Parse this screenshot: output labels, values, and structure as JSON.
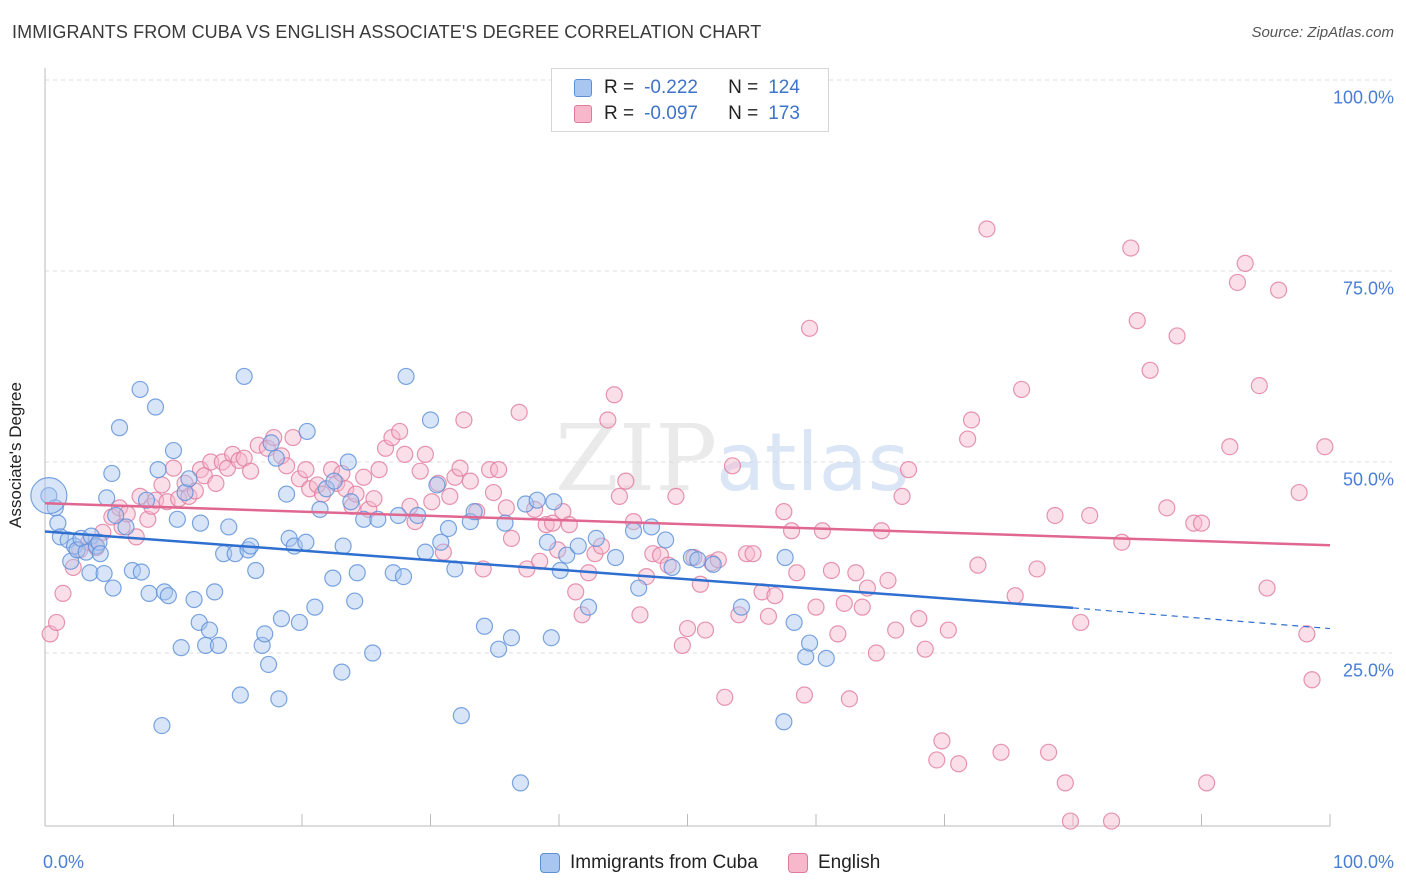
{
  "header": {
    "title": "IMMIGRANTS FROM CUBA VS ENGLISH ASSOCIATE'S DEGREE CORRELATION CHART",
    "source": "Source: ZipAtlas.com"
  },
  "legend": {
    "row1": {
      "r_label": "R =",
      "r_value": "-0.222",
      "n_label": "N =",
      "n_value": "124"
    },
    "row2": {
      "r_label": "R =",
      "r_value": "-0.097",
      "n_label": "N =",
      "n_value": "173"
    }
  },
  "bottom_legend": {
    "series1": "Immigrants from Cuba",
    "series2": "English"
  },
  "watermark": {
    "part1": "ZIP",
    "part2": "atlas"
  },
  "colors": {
    "blue_fill": "#a9c6f0",
    "blue_stroke": "#5b8fd8",
    "blue_line": "#2f6fcf",
    "pink_fill": "#f7b8cb",
    "pink_stroke": "#e07a9c",
    "pink_line": "#e0678f",
    "tick_text": "#4a7ed6",
    "grid": "#dddddd"
  },
  "chart_data": {
    "type": "scatter",
    "title": "IMMIGRANTS FROM CUBA VS ENGLISH ASSOCIATE'S DEGREE CORRELATION CHART",
    "xlabel": "",
    "ylabel": "Associate's Degree",
    "xlim": [
      0,
      100
    ],
    "ylim": [
      0,
      105
    ],
    "x_tick_labels": [
      "0.0%",
      "100.0%"
    ],
    "y_ticks": [
      25,
      50,
      75,
      100
    ],
    "y_tick_labels": [
      "25.0%",
      "50.0%",
      "75.0%",
      "100.0%"
    ],
    "grid": true,
    "legend_position": "top-center",
    "series": [
      {
        "name": "Immigrants from Cuba",
        "r": -0.222,
        "n": 124,
        "trend": {
          "x0": 0,
          "y0": 40.9,
          "x1": 80,
          "y1": 30.9,
          "dashed_to_x": 100,
          "dashed_to_y": 28.2
        },
        "points": [
          [
            0.3,
            45.6
          ],
          [
            0.8,
            44
          ],
          [
            1,
            42
          ],
          [
            1.2,
            40.2
          ],
          [
            1.8,
            39.8
          ],
          [
            2,
            37
          ],
          [
            2.3,
            39
          ],
          [
            2.5,
            38.5
          ],
          [
            2.8,
            40
          ],
          [
            3.2,
            38.2
          ],
          [
            3.5,
            35.5
          ],
          [
            3.6,
            40.3
          ],
          [
            4,
            39
          ],
          [
            4.2,
            39.5
          ],
          [
            4.3,
            38
          ],
          [
            4.6,
            35.4
          ],
          [
            4.8,
            45.3
          ],
          [
            5.2,
            48.5
          ],
          [
            5.3,
            33.5
          ],
          [
            5.5,
            43
          ],
          [
            5.8,
            54.5
          ],
          [
            6.3,
            41.5
          ],
          [
            6.8,
            35.8
          ],
          [
            7.4,
            59.5
          ],
          [
            7.5,
            35.6
          ],
          [
            7.9,
            45
          ],
          [
            8.1,
            32.8
          ],
          [
            8.6,
            57.2
          ],
          [
            8.8,
            49
          ],
          [
            9.1,
            15.5
          ],
          [
            9.3,
            33
          ],
          [
            9.6,
            32.5
          ],
          [
            10,
            51.5
          ],
          [
            10.3,
            42.5
          ],
          [
            10.6,
            25.7
          ],
          [
            10.9,
            46
          ],
          [
            11.2,
            47.8
          ],
          [
            11.6,
            32
          ],
          [
            12,
            29
          ],
          [
            12.1,
            42
          ],
          [
            12.5,
            26
          ],
          [
            12.8,
            28
          ],
          [
            13.2,
            33
          ],
          [
            13.5,
            26
          ],
          [
            13.9,
            38
          ],
          [
            14.3,
            41.5
          ],
          [
            14.8,
            38
          ],
          [
            15.2,
            19.5
          ],
          [
            15.5,
            61.2
          ],
          [
            15.8,
            38.5
          ],
          [
            16,
            39
          ],
          [
            16.4,
            35.8
          ],
          [
            16.9,
            26
          ],
          [
            17.1,
            27.5
          ],
          [
            17.4,
            23.5
          ],
          [
            17.6,
            52.5
          ],
          [
            18,
            50.5
          ],
          [
            18.2,
            19
          ],
          [
            18.4,
            29.5
          ],
          [
            18.8,
            45.8
          ],
          [
            19,
            40
          ],
          [
            19.4,
            39
          ],
          [
            19.8,
            29
          ],
          [
            20.3,
            39.5
          ],
          [
            20.4,
            54
          ],
          [
            21,
            31
          ],
          [
            21.4,
            43.8
          ],
          [
            21.9,
            46.5
          ],
          [
            22.4,
            34.8
          ],
          [
            22.5,
            47.5
          ],
          [
            23.1,
            22.5
          ],
          [
            23.2,
            39
          ],
          [
            23.6,
            50
          ],
          [
            23.8,
            44.8
          ],
          [
            24.1,
            31.8
          ],
          [
            24.3,
            35.5
          ],
          [
            24.8,
            42.5
          ],
          [
            25.5,
            25
          ],
          [
            25.9,
            42.5
          ],
          [
            27.1,
            35.5
          ],
          [
            27.5,
            43
          ],
          [
            27.9,
            35
          ],
          [
            28.1,
            61.2
          ],
          [
            29,
            43
          ],
          [
            29.6,
            38.2
          ],
          [
            30,
            55.5
          ],
          [
            30.5,
            47
          ],
          [
            30.8,
            39.5
          ],
          [
            31.4,
            41.3
          ],
          [
            31.9,
            36
          ],
          [
            32.4,
            16.8
          ],
          [
            33.1,
            42.2
          ],
          [
            33.4,
            43.5
          ],
          [
            34.2,
            28.5
          ],
          [
            35.3,
            25.5
          ],
          [
            35.8,
            42
          ],
          [
            36.3,
            27
          ],
          [
            37,
            8
          ],
          [
            37.4,
            44.5
          ],
          [
            38.3,
            45
          ],
          [
            39.1,
            39.5
          ],
          [
            39.4,
            27
          ],
          [
            39.6,
            44.8
          ],
          [
            40.1,
            35.8
          ],
          [
            40.6,
            37.8
          ],
          [
            41.5,
            39
          ],
          [
            42.3,
            31
          ],
          [
            42.9,
            40
          ],
          [
            44.4,
            37.5
          ],
          [
            45.8,
            41
          ],
          [
            46.2,
            33.5
          ],
          [
            47.2,
            41.5
          ],
          [
            48.8,
            36.2
          ],
          [
            48.3,
            39.8
          ],
          [
            50.3,
            37.5
          ],
          [
            50.8,
            37.2
          ],
          [
            52,
            36.6
          ],
          [
            54.2,
            31
          ],
          [
            57.5,
            16
          ],
          [
            57.6,
            37.5
          ],
          [
            58.3,
            29
          ],
          [
            59.2,
            24.5
          ],
          [
            59.5,
            26.3
          ],
          [
            60.8,
            24.3
          ]
        ]
      },
      {
        "name": "English",
        "r": -0.097,
        "n": 173,
        "trend": {
          "x0": 0,
          "y0": 44.6,
          "x1": 100,
          "y1": 39.1
        },
        "points": [
          [
            0.4,
            27.5
          ],
          [
            0.9,
            29
          ],
          [
            1.4,
            32.8
          ],
          [
            2.2,
            36.2
          ],
          [
            2.7,
            38.5
          ],
          [
            3.4,
            39.5
          ],
          [
            4,
            38.8
          ],
          [
            4.5,
            40.8
          ],
          [
            5.2,
            42.8
          ],
          [
            5.8,
            44
          ],
          [
            6,
            41.5
          ],
          [
            6.4,
            43.2
          ],
          [
            7.1,
            40.2
          ],
          [
            7.4,
            45.5
          ],
          [
            8,
            42.5
          ],
          [
            8.3,
            44.2
          ],
          [
            8.6,
            45
          ],
          [
            9.1,
            47
          ],
          [
            9.5,
            44.8
          ],
          [
            10,
            49.2
          ],
          [
            10.4,
            45.2
          ],
          [
            10.9,
            47.2
          ],
          [
            11.2,
            45.5
          ],
          [
            11.7,
            46.2
          ],
          [
            12.1,
            49
          ],
          [
            12.4,
            48.2
          ],
          [
            12.9,
            50
          ],
          [
            13.3,
            47.2
          ],
          [
            13.8,
            50
          ],
          [
            14.2,
            49.2
          ],
          [
            14.6,
            51
          ],
          [
            15.1,
            50.2
          ],
          [
            15.5,
            50.5
          ],
          [
            16,
            48.8
          ],
          [
            16.6,
            52.2
          ],
          [
            17.3,
            51.8
          ],
          [
            17.8,
            53.2
          ],
          [
            18.4,
            50.8
          ],
          [
            18.8,
            49.5
          ],
          [
            19.3,
            53.2
          ],
          [
            19.8,
            47.8
          ],
          [
            20.3,
            49
          ],
          [
            20.6,
            46.5
          ],
          [
            21.2,
            47
          ],
          [
            21.6,
            45.8
          ],
          [
            22.3,
            49
          ],
          [
            22.7,
            47.2
          ],
          [
            23.1,
            48.5
          ],
          [
            23.4,
            46.5
          ],
          [
            23.9,
            44.2
          ],
          [
            24.2,
            45.8
          ],
          [
            24.8,
            48
          ],
          [
            25.2,
            43.8
          ],
          [
            25.6,
            45.2
          ],
          [
            26,
            49
          ],
          [
            26.5,
            51.8
          ],
          [
            27,
            53.2
          ],
          [
            27.6,
            54
          ],
          [
            28,
            51
          ],
          [
            28.4,
            44.2
          ],
          [
            28.8,
            42.2
          ],
          [
            29.2,
            48.8
          ],
          [
            29.6,
            51
          ],
          [
            30.1,
            44.8
          ],
          [
            30.6,
            47.2
          ],
          [
            31,
            38.2
          ],
          [
            31.5,
            45.5
          ],
          [
            31.9,
            48
          ],
          [
            32.3,
            49.2
          ],
          [
            32.6,
            55.5
          ],
          [
            33.1,
            47.5
          ],
          [
            33.6,
            43.5
          ],
          [
            34.1,
            36
          ],
          [
            34.6,
            49
          ],
          [
            34.9,
            46
          ],
          [
            35.3,
            49
          ],
          [
            35.9,
            44
          ],
          [
            36.3,
            40
          ],
          [
            36.9,
            56.5
          ],
          [
            37.5,
            36
          ],
          [
            38.1,
            43.8
          ],
          [
            38.5,
            37
          ],
          [
            39,
            41.8
          ],
          [
            39.5,
            42
          ],
          [
            39.9,
            38.5
          ],
          [
            40.3,
            43.5
          ],
          [
            40.8,
            41.8
          ],
          [
            41.3,
            33
          ],
          [
            41.8,
            30
          ],
          [
            42.3,
            35.5
          ],
          [
            42.8,
            38
          ],
          [
            43.3,
            39
          ],
          [
            43.8,
            55.5
          ],
          [
            44.3,
            58.8
          ],
          [
            44.7,
            45.5
          ],
          [
            45.2,
            47.5
          ],
          [
            45.8,
            42.2
          ],
          [
            46.3,
            30
          ],
          [
            46.8,
            35
          ],
          [
            47.3,
            38
          ],
          [
            47.9,
            37.8
          ],
          [
            48.5,
            36.5
          ],
          [
            49.1,
            45.5
          ],
          [
            49.6,
            26
          ],
          [
            50,
            28.2
          ],
          [
            50.5,
            37.5
          ],
          [
            51,
            34
          ],
          [
            51.4,
            28
          ],
          [
            51.9,
            36.8
          ],
          [
            52.4,
            37.2
          ],
          [
            52.9,
            19.2
          ],
          [
            53.5,
            49.5
          ],
          [
            54,
            30
          ],
          [
            54.6,
            38
          ],
          [
            55.1,
            38
          ],
          [
            55.8,
            33
          ],
          [
            56.3,
            29.8
          ],
          [
            56.8,
            32.5
          ],
          [
            57.5,
            43.5
          ],
          [
            58.1,
            41
          ],
          [
            58.5,
            35.5
          ],
          [
            59.1,
            19.5
          ],
          [
            59.5,
            67.5
          ],
          [
            60,
            31
          ],
          [
            60.5,
            41
          ],
          [
            61.2,
            35.8
          ],
          [
            61.7,
            27.5
          ],
          [
            62.2,
            31.5
          ],
          [
            62.6,
            19
          ],
          [
            63.1,
            35.5
          ],
          [
            63.6,
            31
          ],
          [
            64,
            33.5
          ],
          [
            64.7,
            25
          ],
          [
            65.1,
            41
          ],
          [
            65.6,
            34.5
          ],
          [
            66.2,
            28
          ],
          [
            66.7,
            45.5
          ],
          [
            67.2,
            49
          ],
          [
            68,
            29.5
          ],
          [
            68.5,
            25.5
          ],
          [
            69.4,
            11
          ],
          [
            69.8,
            13.5
          ],
          [
            70.3,
            28
          ],
          [
            71.1,
            10.5
          ],
          [
            71.8,
            53
          ],
          [
            72.1,
            55.5
          ],
          [
            72.6,
            36.5
          ],
          [
            73.3,
            80.5
          ],
          [
            74.4,
            12
          ],
          [
            75.5,
            32.5
          ],
          [
            76,
            59.5
          ],
          [
            77.2,
            36
          ],
          [
            78.1,
            12
          ],
          [
            78.6,
            43
          ],
          [
            79.4,
            8
          ],
          [
            79.8,
            3
          ],
          [
            80.6,
            29
          ],
          [
            81.3,
            43
          ],
          [
            83,
            3
          ],
          [
            83.8,
            39.5
          ],
          [
            84.5,
            78
          ],
          [
            85,
            68.5
          ],
          [
            86,
            62
          ],
          [
            87.3,
            44
          ],
          [
            88.1,
            66.5
          ],
          [
            89.4,
            42
          ],
          [
            90,
            42
          ],
          [
            90.4,
            8
          ],
          [
            92.2,
            52
          ],
          [
            92.8,
            73.5
          ],
          [
            93.4,
            76
          ],
          [
            94.5,
            60
          ],
          [
            95.1,
            33.5
          ],
          [
            96,
            72.5
          ],
          [
            97.6,
            46
          ],
          [
            98.2,
            27.5
          ],
          [
            98.6,
            21.5
          ],
          [
            99.6,
            52
          ]
        ]
      }
    ]
  }
}
